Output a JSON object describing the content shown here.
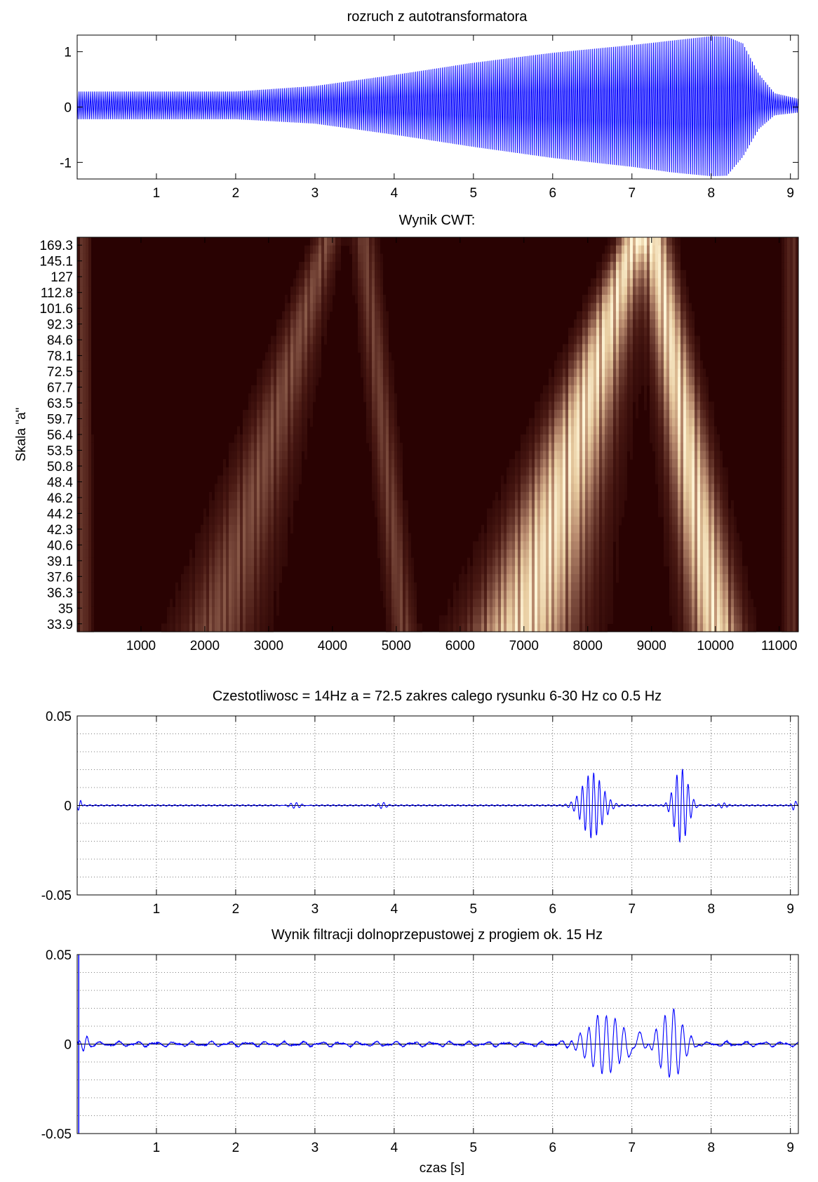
{
  "figure": {
    "background": "#ffffff",
    "signal_color": "#0000ff",
    "cwt_colormap": [
      "#290202",
      "#4a1a14",
      "#7a4a3c",
      "#b88a6e",
      "#e8cca0",
      "#fff6d8"
    ]
  },
  "chart_data": [
    {
      "type": "line",
      "title": "rozruch z autotransformatora",
      "xlabel": "",
      "ylabel": "",
      "xlim": [
        0,
        9.1
      ],
      "ylim": [
        -1.3,
        1.3
      ],
      "xticks": [
        1,
        2,
        3,
        4,
        5,
        6,
        7,
        8,
        9
      ],
      "yticks": [
        -1,
        0,
        1
      ],
      "ytick_labels": [
        "-1",
        "0",
        "1"
      ],
      "grid": false,
      "series": [
        {
          "oscillating": true,
          "envelope_t": [
            0,
            1,
            2,
            3,
            4,
            5,
            6,
            7,
            7.5,
            8.0,
            8.2,
            8.4,
            8.6,
            8.8,
            9.1
          ],
          "envelope_upper": [
            0.28,
            0.28,
            0.28,
            0.38,
            0.58,
            0.8,
            0.98,
            1.12,
            1.2,
            1.28,
            1.27,
            1.15,
            0.6,
            0.25,
            0.15
          ],
          "envelope_lower": [
            -0.22,
            -0.22,
            -0.22,
            -0.3,
            -0.5,
            -0.72,
            -0.92,
            -1.08,
            -1.18,
            -1.25,
            -1.24,
            -0.9,
            -0.4,
            -0.15,
            -0.1
          ]
        }
      ]
    },
    {
      "type": "heatmap",
      "title": "Wynik CWT:",
      "xlabel": "",
      "ylabel": "Skala \"a\"",
      "xlim": [
        0,
        11300
      ],
      "xticks": [
        1000,
        2000,
        3000,
        4000,
        5000,
        6000,
        7000,
        8000,
        9000,
        10000,
        11000
      ],
      "ytick_labels": [
        "169.3",
        "145.1",
        "127",
        "112.8",
        "101.6",
        "92.3",
        "84.6",
        "78.1",
        "72.5",
        "67.7",
        "63.5",
        "59.7",
        "56.4",
        "53.5",
        "50.8",
        "48.4",
        "46.2",
        "44.2",
        "42.3",
        "40.6",
        "39.1",
        "37.6",
        "36.3",
        "35",
        "33.9"
      ],
      "ridges": [
        {
          "x_top": 8700,
          "x_bottom": 7000,
          "width_top": 250,
          "width_bottom": 900,
          "intensity": 1.0
        },
        {
          "x_top": 9050,
          "x_bottom": 10000,
          "width_top": 250,
          "width_bottom": 450,
          "intensity": 1.0
        },
        {
          "x_top": 3900,
          "x_bottom": 2200,
          "width_top": 220,
          "width_bottom": 700,
          "intensity": 0.45
        },
        {
          "x_top": 4500,
          "x_bottom": 5100,
          "width_top": 200,
          "width_bottom": 220,
          "intensity": 0.4
        },
        {
          "x_top": 100,
          "x_bottom": 100,
          "width_top": 120,
          "width_bottom": 150,
          "intensity": 0.35
        },
        {
          "x_top": 11200,
          "x_bottom": 11200,
          "width_top": 150,
          "width_bottom": 150,
          "intensity": 0.3
        }
      ]
    },
    {
      "type": "line",
      "title": "Czestotliwosc = 14Hz  a = 72.5 zakres calego rysunku 6-30 Hz co 0.5 Hz",
      "xlabel": "",
      "ylabel": "",
      "xlim": [
        0,
        9.1
      ],
      "ylim": [
        -0.05,
        0.05
      ],
      "xticks": [
        1,
        2,
        3,
        4,
        5,
        6,
        7,
        8,
        9
      ],
      "yticks": [
        -0.05,
        0,
        0.05
      ],
      "ytick_labels": [
        "-0.05",
        "0",
        "0.05"
      ],
      "grid": true,
      "series": [
        {
          "packets": [
            {
              "t": 0.03,
              "amp": 0.004,
              "width": 0.03,
              "freq": 14
            },
            {
              "t": 2.75,
              "amp": 0.002,
              "width": 0.12,
              "freq": 14
            },
            {
              "t": 3.85,
              "amp": 0.0015,
              "width": 0.06,
              "freq": 14
            },
            {
              "t": 6.5,
              "amp": 0.018,
              "width": 0.17,
              "freq": 14
            },
            {
              "t": 7.62,
              "amp": 0.021,
              "width": 0.12,
              "freq": 14
            },
            {
              "t": 8.15,
              "amp": 0.0012,
              "width": 0.06,
              "freq": 14
            },
            {
              "t": 9.05,
              "amp": 0.003,
              "width": 0.04,
              "freq": 14
            }
          ]
        }
      ]
    },
    {
      "type": "line",
      "title": "Wynik filtracji dolnoprzepustowej z progiem ok. 15 Hz",
      "xlabel": "czas [s]",
      "ylabel": "",
      "xlim": [
        0,
        9.1
      ],
      "ylim": [
        -0.05,
        0.05
      ],
      "xticks": [
        1,
        2,
        3,
        4,
        5,
        6,
        7,
        8,
        9
      ],
      "yticks": [
        -0.05,
        0,
        0.05
      ],
      "ytick_labels": [
        "-0.05",
        "0",
        "0.05"
      ],
      "grid": true,
      "series": [
        {
          "spike": {
            "t": 0.02,
            "max": 0.05,
            "min": -0.05
          },
          "packets": [
            {
              "t": 0.1,
              "amp": 0.005,
              "width": 0.05,
              "freq": 9
            },
            {
              "t": 6.65,
              "amp": 0.017,
              "width": 0.28,
              "freq": 9
            },
            {
              "t": 7.05,
              "amp": 0.008,
              "width": 0.12,
              "freq": 5
            },
            {
              "t": 7.5,
              "amp": 0.019,
              "width": 0.2,
              "freq": 9
            }
          ],
          "noise_amp": 0.0018
        }
      ]
    }
  ]
}
